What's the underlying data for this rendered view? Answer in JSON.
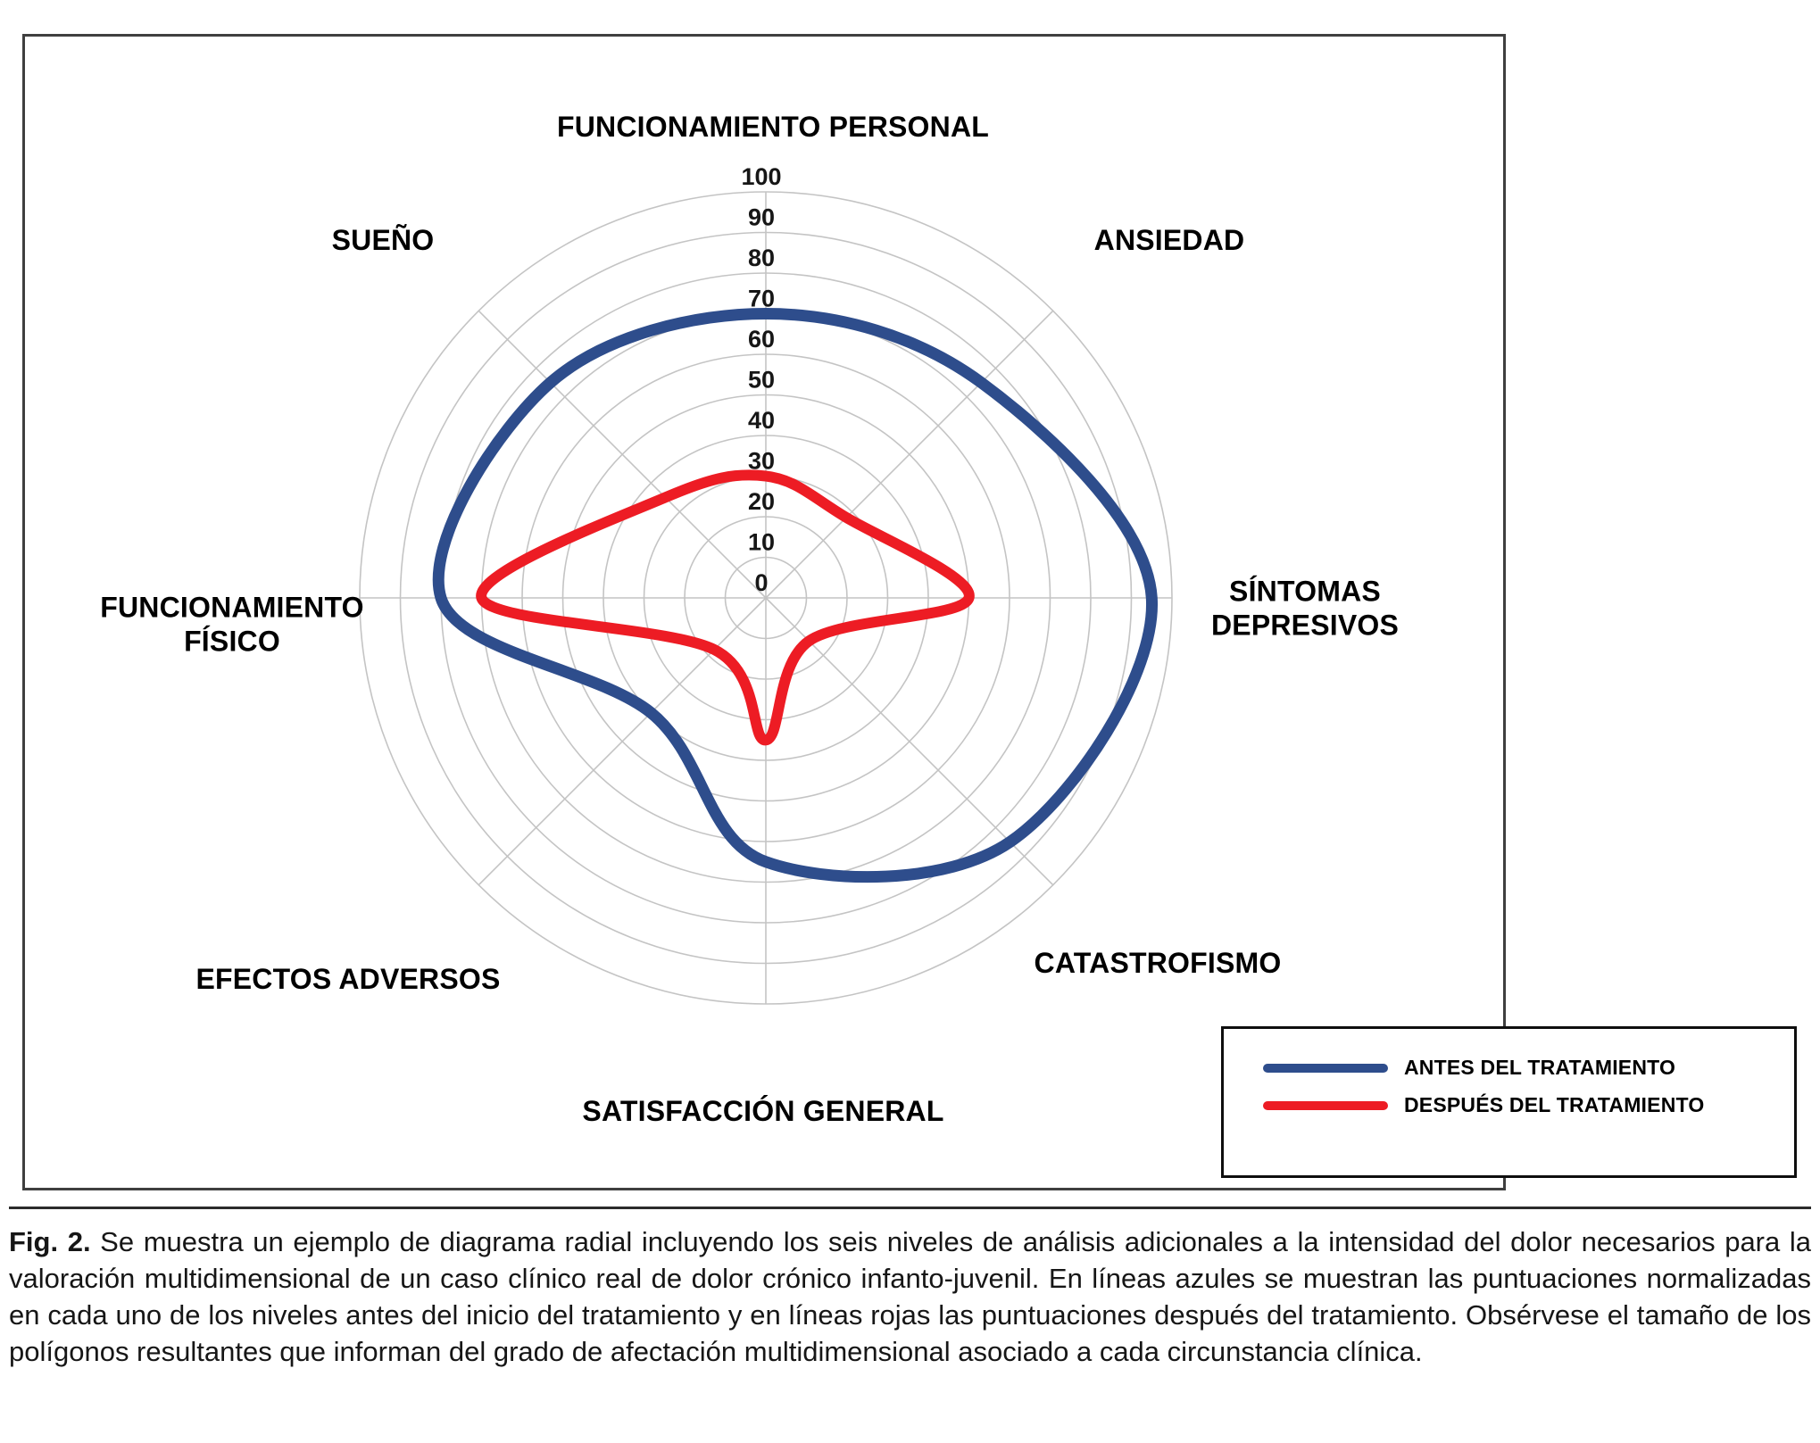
{
  "figure": {
    "caption_label": "Fig. 2.",
    "caption_body": " Se muestra un ejemplo de diagrama radial incluyendo los seis niveles de análisis adicionales a la intensidad del dolor necesarios para la valoración multidimensional de un caso clínico real de dolor crónico infanto-juvenil. En líneas azules se muestran las puntuaciones normalizadas en cada uno de los niveles antes del inicio del tratamiento y en líneas rojas las puntuaciones después del tratamiento. Obsérvese el tamaño de los polígonos resultantes que informan del grado de afectación multidimensional asociado a cada circunstancia clínica."
  },
  "chart_data": {
    "type": "radar",
    "categories": [
      "FUNCIONAMIENTO PERSONAL",
      "ANSIEDAD",
      "SÍNTOMAS DEPRESIVOS",
      "CATASTROFISMO",
      "SATISFACCIÓN GENERAL",
      "EFECTOS ADVERSOS",
      "FUNCIONAMIENTO FÍSICO",
      "SUEÑO"
    ],
    "radial_axis": {
      "min": 0,
      "max": 100,
      "step": 10,
      "tick_labels": [
        "0",
        "10",
        "20",
        "30",
        "40",
        "50",
        "60",
        "70",
        "80",
        "90",
        "100"
      ]
    },
    "series": [
      {
        "name": "ANTES DEL TRATAMIENTO",
        "color": "#2e4d8c",
        "values": [
          70,
          75,
          95,
          85,
          65,
          40,
          80,
          75
        ]
      },
      {
        "name": "DESPUÉS DEL TRATAMIENTO",
        "color": "#ed1c24",
        "values": [
          30,
          28,
          50,
          15,
          35,
          18,
          70,
          35
        ]
      }
    ],
    "grid": "circular",
    "legend_position": "bottom-right"
  }
}
